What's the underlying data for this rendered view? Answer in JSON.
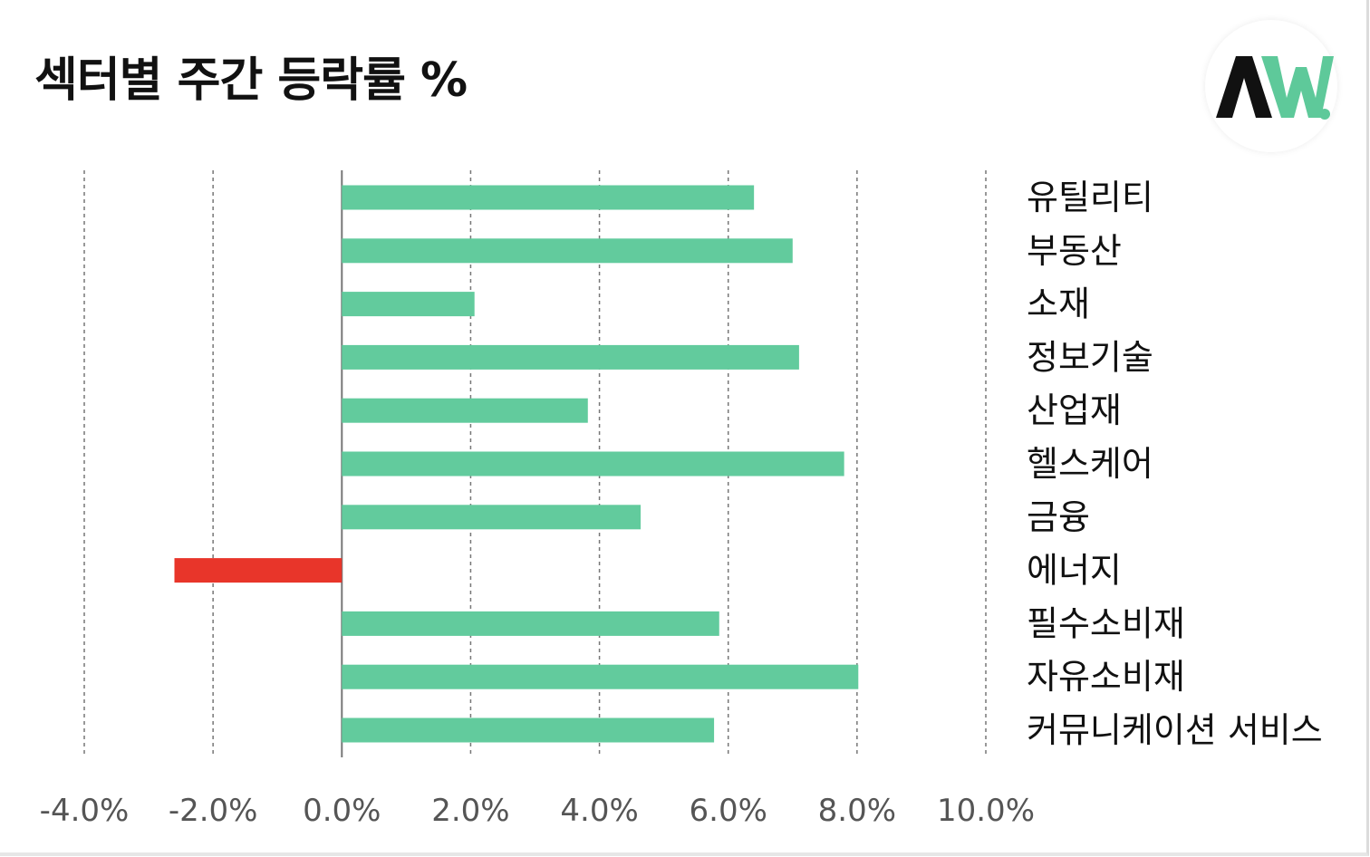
{
  "title": "섹터별 주간 등락률 %",
  "logo": {
    "icon": "aw-logo-icon",
    "accent": "#5ec99a",
    "dark": "#111111"
  },
  "colors": {
    "positive": "#62cb9d",
    "negative": "#e8352a",
    "grid": "#777777"
  },
  "chart_data": {
    "type": "bar",
    "orientation": "horizontal",
    "title": "섹터별 주간 등락률 %",
    "xlim": [
      -4.0,
      10.0
    ],
    "grid": true,
    "ticks": [
      "-4.0%",
      "-2.0%",
      "0.0%",
      "2.0%",
      "4.0%",
      "6.0%",
      "8.0%",
      "10.0%"
    ],
    "tick_values": [
      -4.0,
      -2.0,
      0.0,
      2.0,
      4.0,
      6.0,
      8.0,
      10.0
    ],
    "categories": [
      "유틸리티",
      "부동산",
      "소재",
      "정보기술",
      "산업재",
      "헬스케어",
      "금융",
      "에너지",
      "필수소비재",
      "자유소비재",
      "커뮤니케이션 서비스"
    ],
    "values": [
      6.4,
      7.0,
      2.06,
      7.1,
      3.82,
      7.8,
      4.64,
      -2.6,
      5.86,
      8.02,
      5.78
    ]
  }
}
